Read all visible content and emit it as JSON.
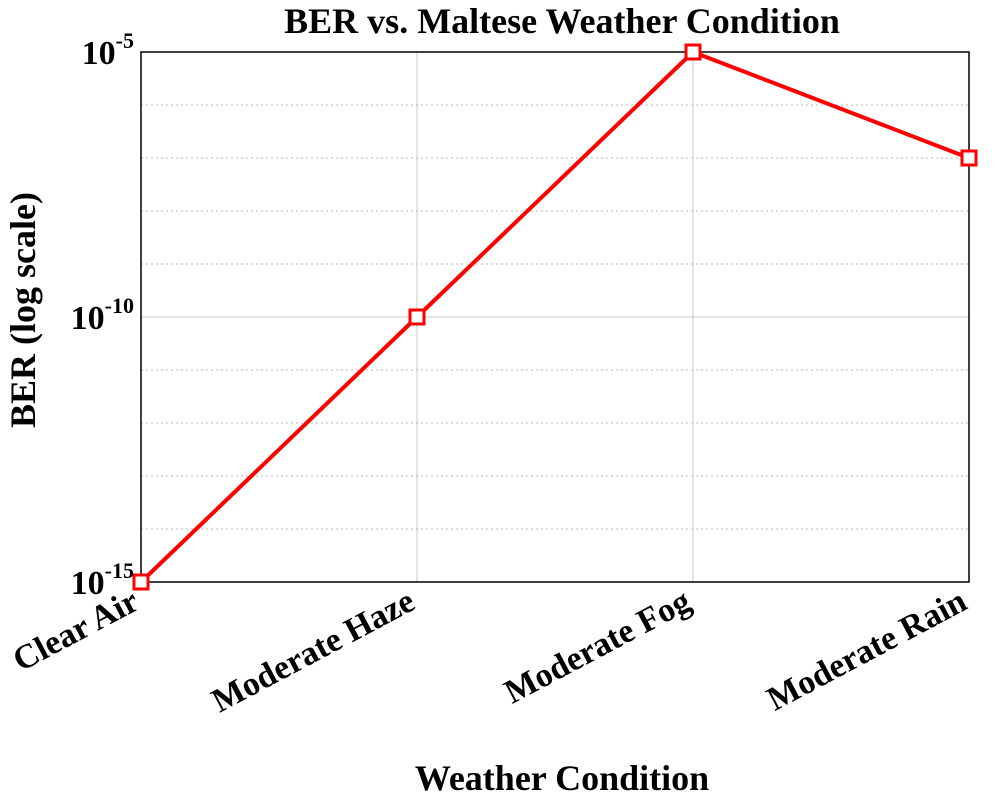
{
  "chart_data": {
    "type": "line",
    "title": "BER vs. Maltese Weather Condition",
    "xlabel": "Weather Condition",
    "ylabel": "BER (log scale)",
    "yscale": "log",
    "ylim": [
      1e-15,
      1e-05
    ],
    "grid": true,
    "categories": [
      "Clear Air",
      "Moderate Haze",
      "Moderate Fog",
      "Moderate Rain"
    ],
    "y_ticks": [
      {
        "base": "10",
        "exp": "-15",
        "value": 1e-15
      },
      {
        "base": "10",
        "exp": "-10",
        "value": 1e-10
      },
      {
        "base": "10",
        "exp": "-5",
        "value": 1e-05
      }
    ],
    "series": [
      {
        "name": "BER",
        "color": "#ff0000",
        "marker": "square",
        "values": [
          1e-15,
          1e-10,
          1e-05,
          1e-07
        ]
      }
    ]
  }
}
